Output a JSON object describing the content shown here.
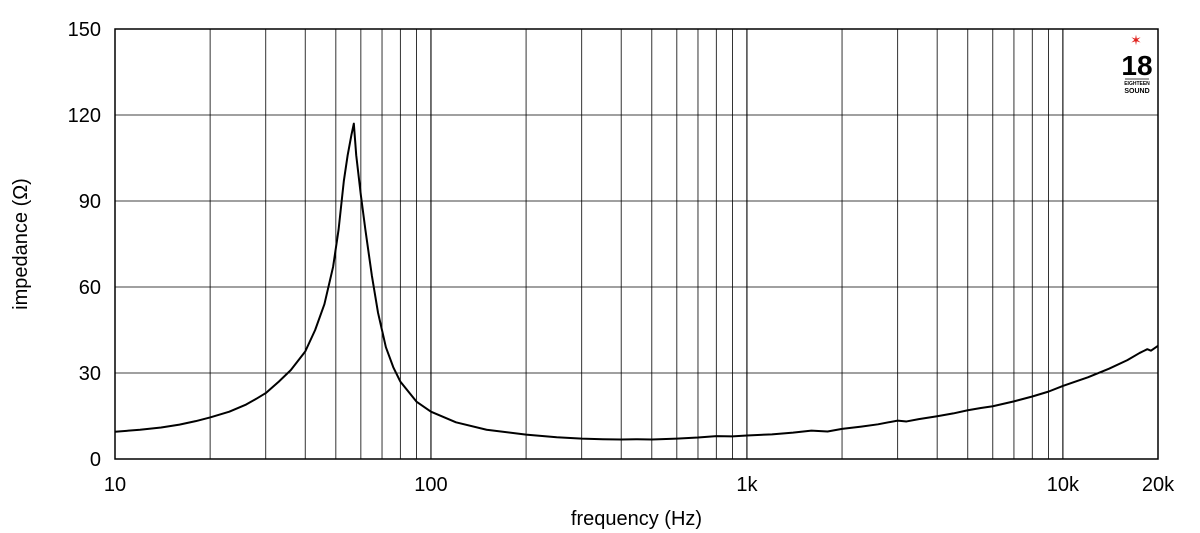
{
  "chart_data": {
    "type": "line",
    "xscale": "log",
    "xlim": [
      10,
      20000
    ],
    "ylim": [
      0,
      150
    ],
    "xlabel": "frequency (Hz)",
    "ylabel": "impedance (Ω)",
    "grid": true,
    "x_ticks": [
      {
        "value": 10,
        "label": "10"
      },
      {
        "value": 100,
        "label": "100"
      },
      {
        "value": 1000,
        "label": "1k"
      },
      {
        "value": 10000,
        "label": "10k"
      },
      {
        "value": 20000,
        "label": "20k"
      }
    ],
    "y_ticks": [
      {
        "value": 0,
        "label": "0"
      },
      {
        "value": 30,
        "label": "30"
      },
      {
        "value": 60,
        "label": "60"
      },
      {
        "value": 90,
        "label": "90"
      },
      {
        "value": 120,
        "label": "120"
      },
      {
        "value": 150,
        "label": "150"
      }
    ],
    "series": [
      {
        "color": "#000000",
        "points": [
          [
            10,
            9.5
          ],
          [
            12,
            10.2
          ],
          [
            14,
            11
          ],
          [
            16,
            12
          ],
          [
            18,
            13.2
          ],
          [
            20,
            14.5
          ],
          [
            23,
            16.5
          ],
          [
            26,
            19
          ],
          [
            28,
            21
          ],
          [
            30,
            23
          ],
          [
            33,
            27
          ],
          [
            36,
            31
          ],
          [
            40,
            37.5
          ],
          [
            43,
            45
          ],
          [
            46,
            54
          ],
          [
            49,
            67
          ],
          [
            51,
            80
          ],
          [
            53,
            97
          ],
          [
            54.5,
            106
          ],
          [
            56,
            113
          ],
          [
            57,
            117
          ],
          [
            58,
            106
          ],
          [
            60,
            92
          ],
          [
            62,
            80
          ],
          [
            65,
            64
          ],
          [
            68,
            51
          ],
          [
            72,
            39
          ],
          [
            76,
            32
          ],
          [
            80,
            27
          ],
          [
            90,
            20
          ],
          [
            100,
            16.5
          ],
          [
            120,
            12.8
          ],
          [
            150,
            10.2
          ],
          [
            200,
            8.5
          ],
          [
            250,
            7.6
          ],
          [
            300,
            7.1
          ],
          [
            350,
            6.9
          ],
          [
            400,
            6.8
          ],
          [
            450,
            6.9
          ],
          [
            500,
            6.8
          ],
          [
            600,
            7.1
          ],
          [
            700,
            7.5
          ],
          [
            800,
            8
          ],
          [
            900,
            7.9
          ],
          [
            1000,
            8.2
          ],
          [
            1200,
            8.6
          ],
          [
            1400,
            9.2
          ],
          [
            1600,
            9.9
          ],
          [
            1800,
            9.6
          ],
          [
            2000,
            10.5
          ],
          [
            2300,
            11.3
          ],
          [
            2600,
            12.1
          ],
          [
            3000,
            13.4
          ],
          [
            3200,
            13.1
          ],
          [
            3500,
            13.9
          ],
          [
            4000,
            14.9
          ],
          [
            4500,
            15.9
          ],
          [
            5000,
            17
          ],
          [
            5500,
            17.8
          ],
          [
            6000,
            18.4
          ],
          [
            7000,
            20.1
          ],
          [
            8000,
            21.8
          ],
          [
            9000,
            23.5
          ],
          [
            10000,
            25.5
          ],
          [
            12000,
            28.5
          ],
          [
            14000,
            31.5
          ],
          [
            16000,
            34.5
          ],
          [
            17500,
            37
          ],
          [
            18500,
            38.3
          ],
          [
            19000,
            37.8
          ],
          [
            20000,
            39.5
          ]
        ]
      }
    ]
  },
  "logo": {
    "number": "18",
    "line1": "EIGHTEEN",
    "line2": "SOUND",
    "star": "✶",
    "star_color": "#e0201b"
  }
}
